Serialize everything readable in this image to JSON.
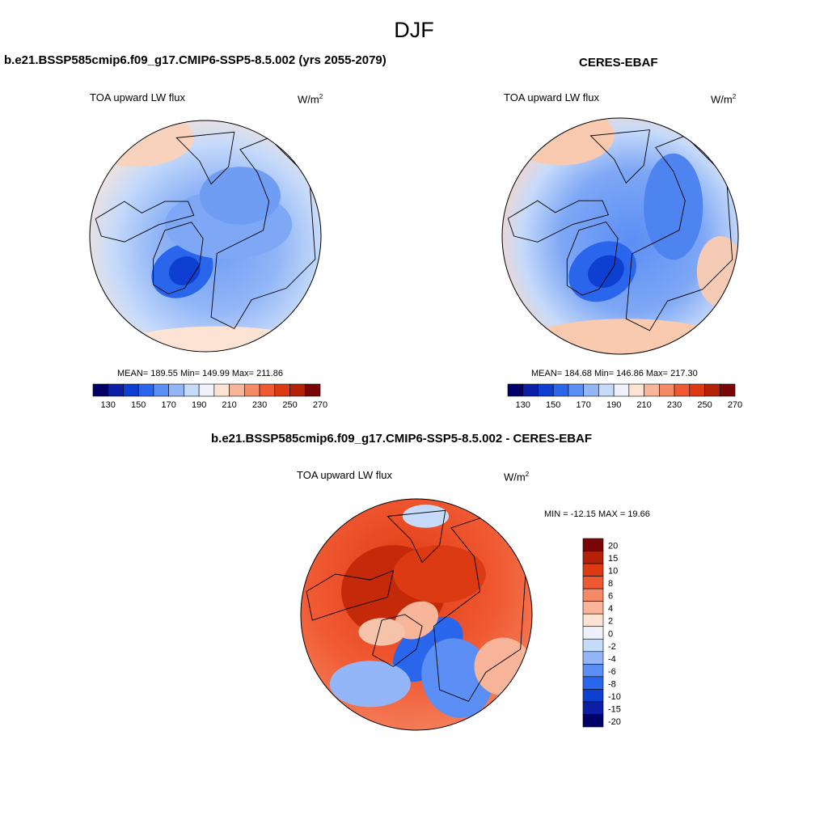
{
  "figure": {
    "season": "DJF"
  },
  "colors": {
    "abs": [
      "#000066",
      "#0b1fa6",
      "#0d3fd0",
      "#2a66ec",
      "#5b8ff5",
      "#92b6f7",
      "#c6dafa",
      "#eef1fa",
      "#fde3d3",
      "#f9b59a",
      "#f58a66",
      "#f05a33",
      "#dc3a12",
      "#b42208",
      "#7a0707"
    ],
    "diff": [
      "#000066",
      "#0b1fa6",
      "#0d3fd0",
      "#2a66ec",
      "#5b8ff5",
      "#92b6f7",
      "#c6dafa",
      "#eef1fa",
      "#fde3d3",
      "#f9b59a",
      "#f58a66",
      "#f05a33",
      "#dc3a12",
      "#b42208",
      "#7a0707"
    ],
    "land": "#000000"
  },
  "panels": {
    "model": {
      "title": "b.e21.BSSP585cmip6.f09_g17.CMIP6-SSP5-8.5.002 (yrs 2055-2079)",
      "variable": "TOA upward LW flux",
      "units_base": "W/m",
      "units_exp": "2",
      "stats": "MEAN= 189.55  Min= 149.99  Max= 211.86"
    },
    "obs": {
      "title": "CERES-EBAF",
      "variable": "TOA upward LW flux",
      "units_base": "W/m",
      "units_exp": "2",
      "stats": "MEAN= 184.68  Min= 146.86  Max= 217.30"
    },
    "diff": {
      "title": "b.e21.BSSP585cmip6.f09_g17.CMIP6-SSP5-8.5.002 - CERES-EBAF",
      "variable": "TOA upward LW flux",
      "units_base": "W/m",
      "units_exp": "2",
      "stats": "MIN = -12.15 MAX =  19.66"
    }
  },
  "chart_data": [
    {
      "type": "heatmap",
      "title": "b.e21.BSSP585cmip6.f09_g17.CMIP6-SSP5-8.5.002 (yrs 2055-2079)",
      "subtitle": "TOA upward LW flux",
      "units": "W/m2",
      "projection": "north polar stereographic",
      "colorbar_ticks": [
        130,
        150,
        170,
        190,
        210,
        230,
        250,
        270
      ],
      "colorbar_levels": [
        130,
        140,
        150,
        160,
        170,
        180,
        190,
        200,
        210,
        220,
        230,
        240,
        250,
        260,
        270
      ],
      "mean": 189.55,
      "min": 149.99,
      "max": 211.86
    },
    {
      "type": "heatmap",
      "title": "CERES-EBAF",
      "subtitle": "TOA upward LW flux",
      "units": "W/m2",
      "projection": "north polar stereographic",
      "colorbar_ticks": [
        130,
        150,
        170,
        190,
        210,
        230,
        250,
        270
      ],
      "colorbar_levels": [
        130,
        140,
        150,
        160,
        170,
        180,
        190,
        200,
        210,
        220,
        230,
        240,
        250,
        260,
        270
      ],
      "mean": 184.68,
      "min": 146.86,
      "max": 217.3
    },
    {
      "type": "heatmap",
      "title": "b.e21.BSSP585cmip6.f09_g17.CMIP6-SSP5-8.5.002 - CERES-EBAF",
      "subtitle": "TOA upward LW flux",
      "units": "W/m2",
      "projection": "north polar stereographic",
      "colorbar_ticks": [
        20,
        15,
        10,
        8,
        6,
        4,
        2,
        0,
        -2,
        -4,
        -6,
        -8,
        -10,
        -15,
        -20
      ],
      "min": -12.15,
      "max": 19.66
    }
  ]
}
